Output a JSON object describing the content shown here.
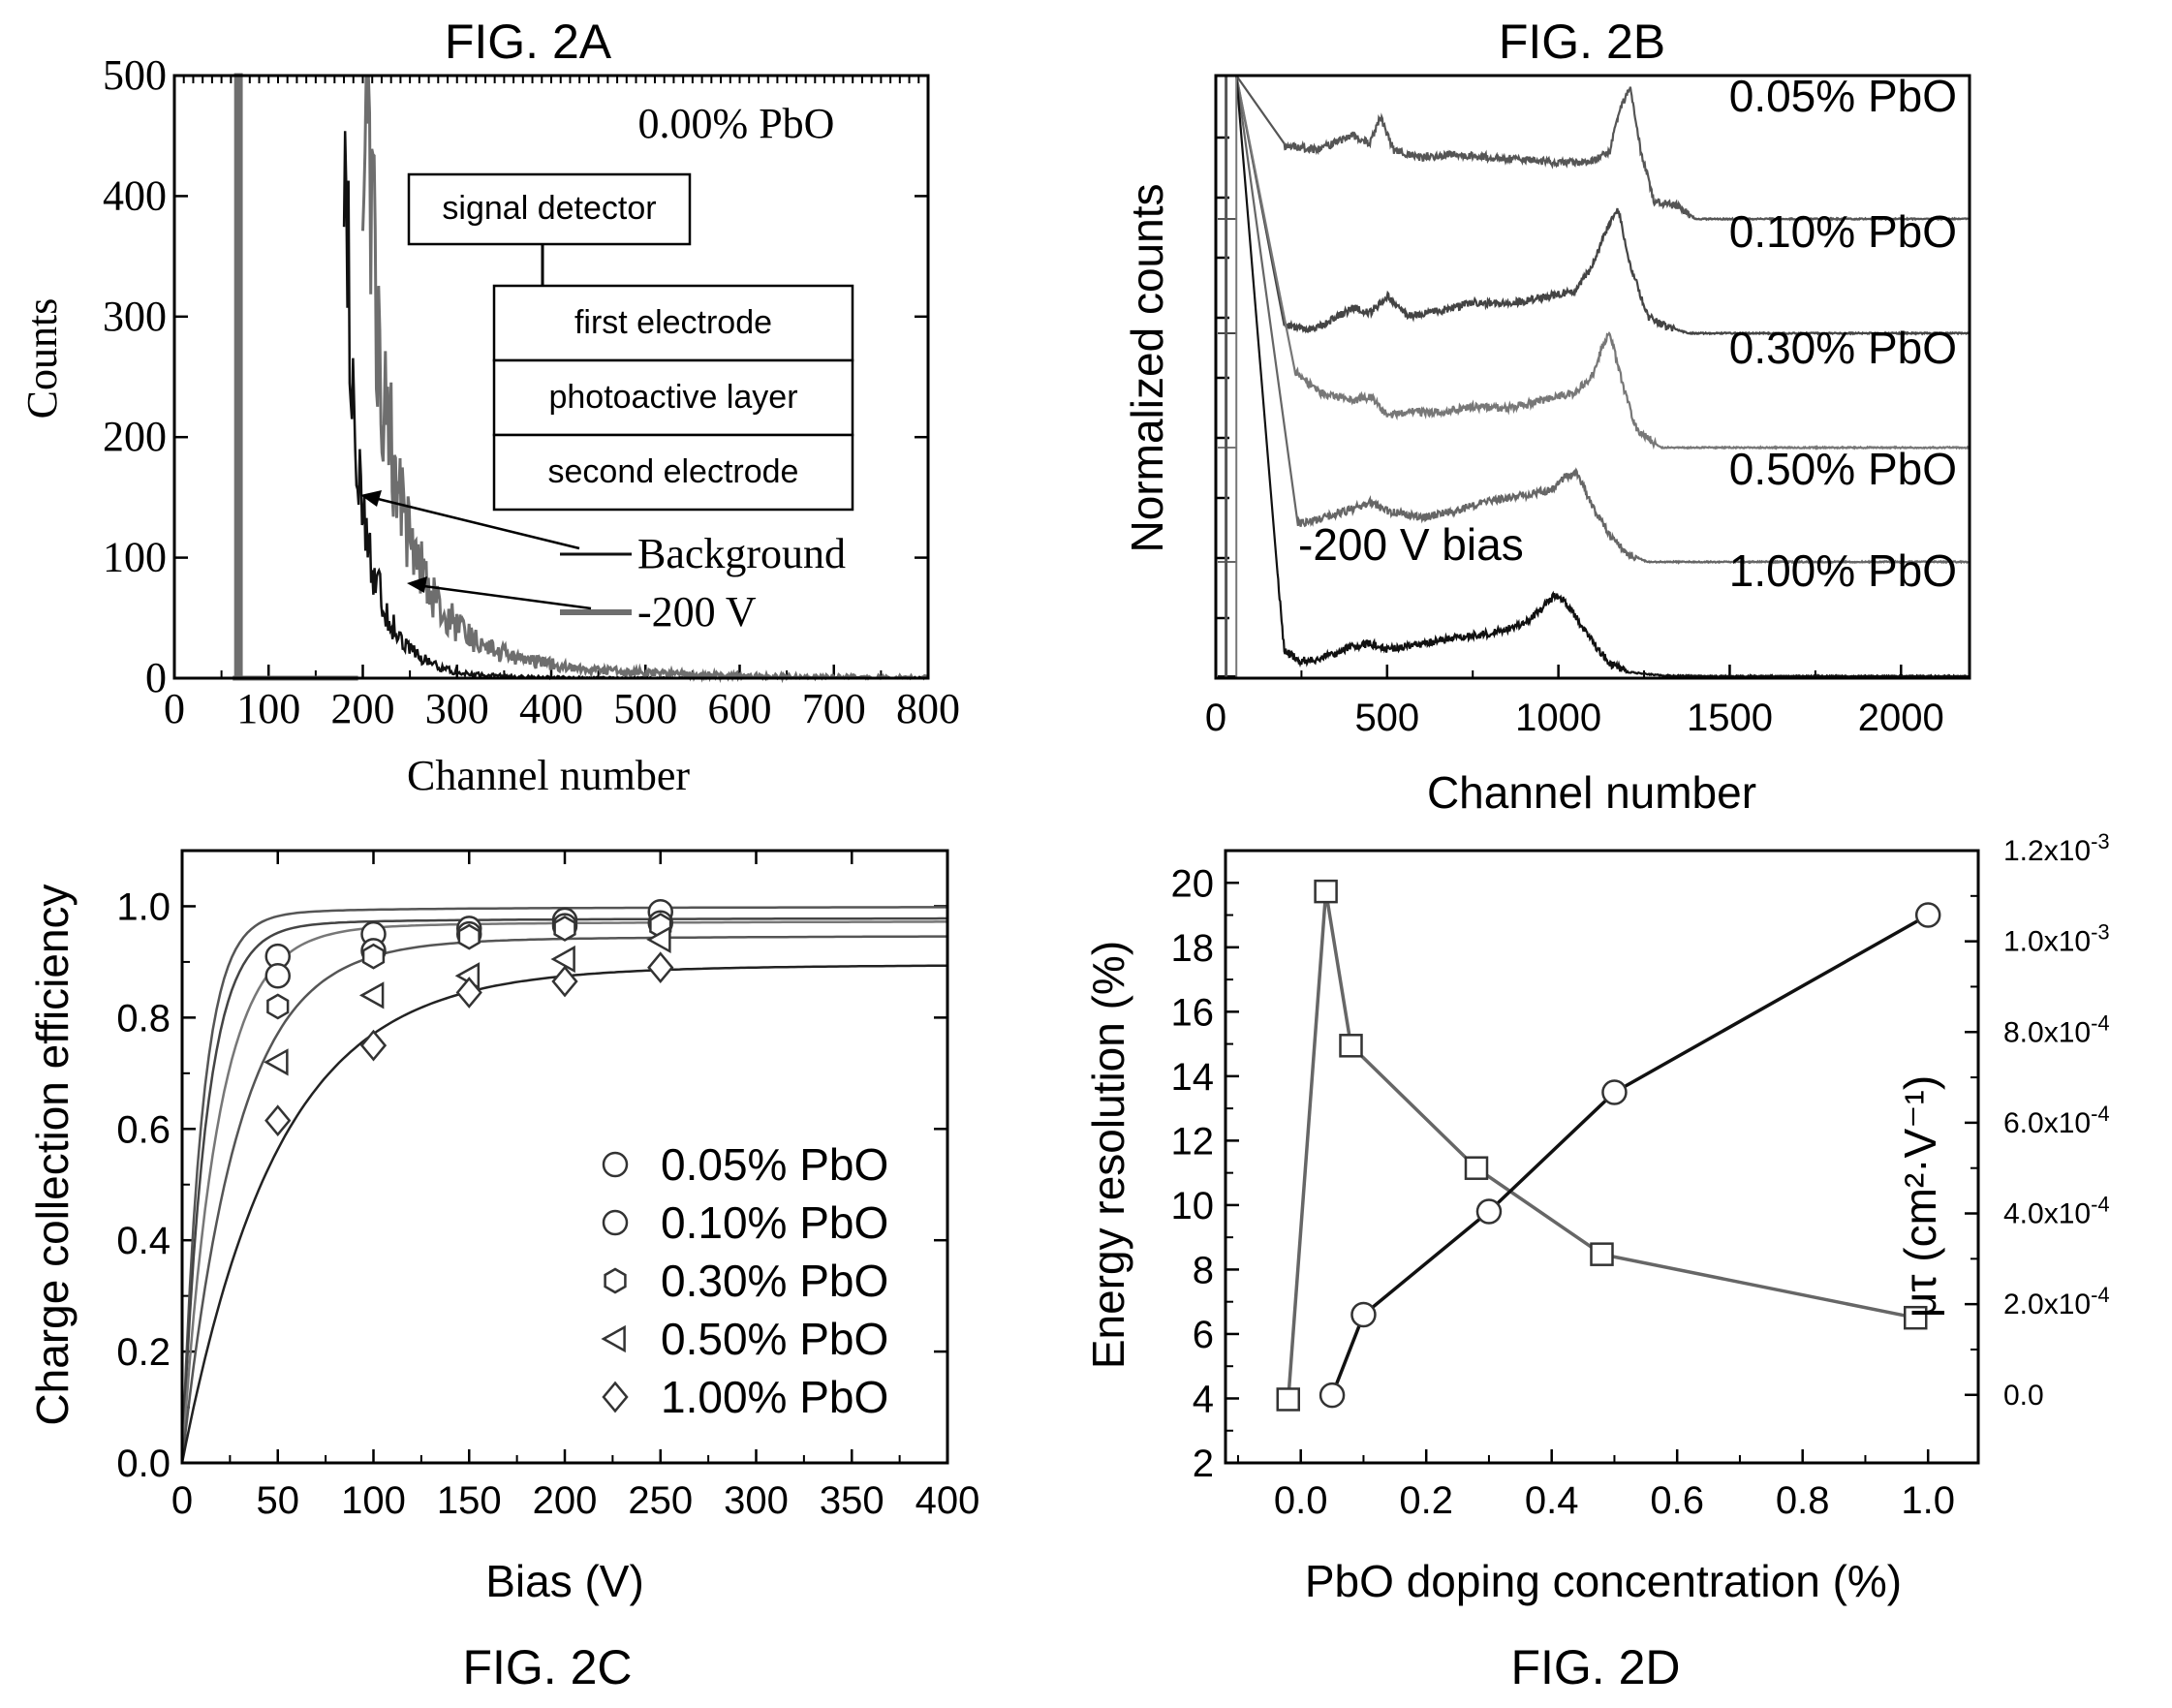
{
  "chart_data": [
    {
      "id": "fig2a",
      "type": "line",
      "title": "FIG. 2A",
      "xlabel": "Channel number",
      "ylabel": "Counts",
      "xlim": [
        0,
        800
      ],
      "ylim": [
        0,
        500
      ],
      "xticks": [
        "0",
        "100",
        "200",
        "300",
        "400",
        "500",
        "600",
        "700",
        "800"
      ],
      "yticks": [
        "0",
        "100",
        "200",
        "300",
        "400",
        "500"
      ],
      "annotation": "0.00% PbO",
      "series": [
        {
          "name": "Background",
          "color": "#111111",
          "x": [
            180,
            185,
            190,
            195,
            200,
            210,
            220,
            230,
            240,
            250,
            260,
            270,
            280,
            290,
            300,
            320,
            340,
            380,
            450,
            800
          ],
          "y": [
            500,
            330,
            230,
            170,
            130,
            90,
            65,
            45,
            33,
            25,
            18,
            13,
            10,
            7,
            5,
            3,
            2,
            1,
            0,
            0
          ]
        },
        {
          "name": "-200 V",
          "color": "#6e6e6e",
          "x": [
            62,
            66,
            66,
            70,
            70,
            200,
            205,
            210,
            220,
            230,
            240,
            250,
            260,
            270,
            280,
            300,
            320,
            350,
            380,
            420,
            480,
            560,
            650,
            800
          ],
          "y": [
            0,
            0,
            500,
            500,
            0,
            500,
            430,
            360,
            260,
            195,
            150,
            120,
            95,
            76,
            62,
            42,
            30,
            20,
            14,
            9,
            5,
            3,
            1,
            0
          ]
        }
      ],
      "inset_layers": [
        "signal detector",
        "first electrode",
        "photoactive layer",
        "second electrode"
      ]
    },
    {
      "id": "fig2b",
      "type": "line",
      "title": "FIG. 2B",
      "xlabel": "Channel number",
      "ylabel": "Normalized counts",
      "xlim": [
        0,
        2200
      ],
      "xticks": [
        "0",
        "500",
        "1000",
        "1500",
        "2000"
      ],
      "annotation": "-200 V bias",
      "series": [
        {
          "name": "0.05% PbO",
          "color": "#555555",
          "offset": 4,
          "x": [
            200,
            300,
            400,
            450,
            480,
            520,
            600,
            700,
            800,
            900,
            1000,
            1100,
            1150,
            1180,
            1210,
            1240,
            1280,
            1350,
            1400,
            2200
          ],
          "y": [
            0.85,
            0.82,
            0.98,
            0.88,
            1.2,
            0.8,
            0.72,
            0.76,
            0.72,
            0.7,
            0.66,
            0.68,
            0.8,
            1.3,
            1.55,
            0.8,
            0.2,
            0.15,
            0.0,
            0.0
          ]
        },
        {
          "name": "0.10% PbO",
          "color": "#444444",
          "offset": 3,
          "x": [
            200,
            260,
            300,
            400,
            450,
            500,
            560,
            650,
            750,
            850,
            950,
            1050,
            1100,
            1150,
            1175,
            1210,
            1260,
            1300,
            1380,
            2200
          ],
          "y": [
            0.1,
            0.05,
            0.07,
            0.3,
            0.24,
            0.44,
            0.2,
            0.26,
            0.36,
            0.34,
            0.42,
            0.5,
            0.8,
            1.3,
            1.45,
            0.8,
            0.2,
            0.1,
            0.0,
            0.0
          ]
        },
        {
          "name": "0.30% PbO",
          "color": "#777777",
          "offset": 2,
          "x": [
            230,
            300,
            400,
            450,
            500,
            560,
            650,
            750,
            850,
            950,
            1050,
            1100,
            1130,
            1150,
            1190,
            1230,
            1300,
            2200
          ],
          "y": [
            0.9,
            0.65,
            0.55,
            0.6,
            0.38,
            0.42,
            0.42,
            0.48,
            0.46,
            0.55,
            0.65,
            0.85,
            1.2,
            1.35,
            0.7,
            0.2,
            0.0,
            0.0
          ]
        },
        {
          "name": "0.50% PbO",
          "color": "#666666",
          "offset": 1,
          "x": [
            240,
            300,
            400,
            450,
            500,
            600,
            700,
            800,
            900,
            980,
            1020,
            1050,
            1070,
            1100,
            1150,
            1200,
            1260,
            1350,
            2200
          ],
          "y": [
            0.45,
            0.5,
            0.62,
            0.7,
            0.6,
            0.52,
            0.6,
            0.72,
            0.78,
            0.85,
            1.0,
            1.05,
            0.9,
            0.65,
            0.3,
            0.1,
            0.0,
            0.0,
            0.0
          ]
        },
        {
          "name": "1.00% PbO",
          "color": "#111111",
          "offset": 0,
          "x": [
            180,
            200,
            250,
            300,
            400,
            450,
            500,
            600,
            700,
            800,
            900,
            950,
            990,
            1010,
            1050,
            1100,
            1150,
            1200,
            1300,
            1400,
            2200
          ],
          "y": [
            1.2,
            0.3,
            0.18,
            0.2,
            0.35,
            0.38,
            0.32,
            0.38,
            0.45,
            0.5,
            0.62,
            0.78,
            0.95,
            0.92,
            0.7,
            0.4,
            0.15,
            0.05,
            0.01,
            0.0,
            0.0
          ]
        }
      ]
    },
    {
      "id": "fig2c",
      "type": "scatter",
      "title": "FIG. 2C",
      "xlabel": "Bias (V)",
      "ylabel": "Charge collection efficiency",
      "xlim": [
        0,
        400
      ],
      "ylim": [
        0,
        1.1
      ],
      "xticks": [
        "0",
        "50",
        "100",
        "150",
        "200",
        "250",
        "300",
        "350",
        "400"
      ],
      "yticks": [
        "0.0",
        "0.2",
        "0.4",
        "0.6",
        "0.8",
        "1.0"
      ],
      "legend": "lower-right",
      "series": [
        {
          "name": "0.05% PbO",
          "marker": "circle",
          "x": [
            50,
            100,
            150,
            200,
            250
          ],
          "y": [
            0.91,
            0.95,
            0.96,
            0.975,
            0.99
          ],
          "fit_lambda": 10
        },
        {
          "name": "0.10% PbO",
          "marker": "circle",
          "x": [
            50,
            100,
            150,
            200,
            250
          ],
          "y": [
            0.875,
            0.92,
            0.95,
            0.965,
            0.97
          ],
          "fit_lambda": 12
        },
        {
          "name": "0.30% PbO",
          "marker": "hexagon",
          "x": [
            50,
            100,
            150,
            200,
            250
          ],
          "y": [
            0.82,
            0.91,
            0.945,
            0.96,
            0.965
          ],
          "fit_lambda": 18
        },
        {
          "name": "0.50% PbO",
          "marker": "triangle-left",
          "x": [
            50,
            100,
            150,
            200,
            250
          ],
          "y": [
            0.72,
            0.84,
            0.875,
            0.905,
            0.94
          ],
          "fit_lambda": 28
        },
        {
          "name": "1.00% PbO",
          "marker": "diamond",
          "x": [
            50,
            100,
            150,
            200,
            250
          ],
          "y": [
            0.615,
            0.75,
            0.845,
            0.865,
            0.89
          ],
          "fit_lambda": 48
        }
      ]
    },
    {
      "id": "fig2d",
      "type": "line",
      "title": "FIG. 2D",
      "xlabel": "PbO doping concentration (%)",
      "ylabel": "Energy resolution (%)",
      "y2label": "μτ (cm²·V⁻¹)",
      "xlim": [
        -0.12,
        1.08
      ],
      "ylim": [
        2,
        21
      ],
      "y2lim": [
        -0.00015,
        0.0012
      ],
      "xticks": [
        "0.0",
        "0.2",
        "0.4",
        "0.6",
        "0.8",
        "1.0"
      ],
      "yticks": [
        "2",
        "4",
        "6",
        "8",
        "10",
        "12",
        "14",
        "16",
        "18",
        "20"
      ],
      "y2ticks": [
        "0.0",
        "2.0x10-4",
        "4.0x10-4",
        "6.0x10-4",
        "8.0x10-4",
        "1.0x10-3",
        "1.2x10-3"
      ],
      "series": [
        {
          "name": "Energy resolution",
          "marker": "circle",
          "axis": "left",
          "color": "#111111",
          "x": [
            0.05,
            0.1,
            0.3,
            0.5,
            1.0
          ],
          "y": [
            4.1,
            6.6,
            9.8,
            13.5,
            19.0
          ]
        },
        {
          "name": "mu-tau",
          "marker": "square",
          "axis": "right",
          "color": "#666666",
          "x": [
            -0.02,
            0.04,
            0.08,
            0.28,
            0.48,
            0.98
          ],
          "y": [
            -1e-05,
            0.00111,
            0.00077,
            0.0005,
            0.00031,
            0.00017
          ]
        }
      ]
    }
  ]
}
